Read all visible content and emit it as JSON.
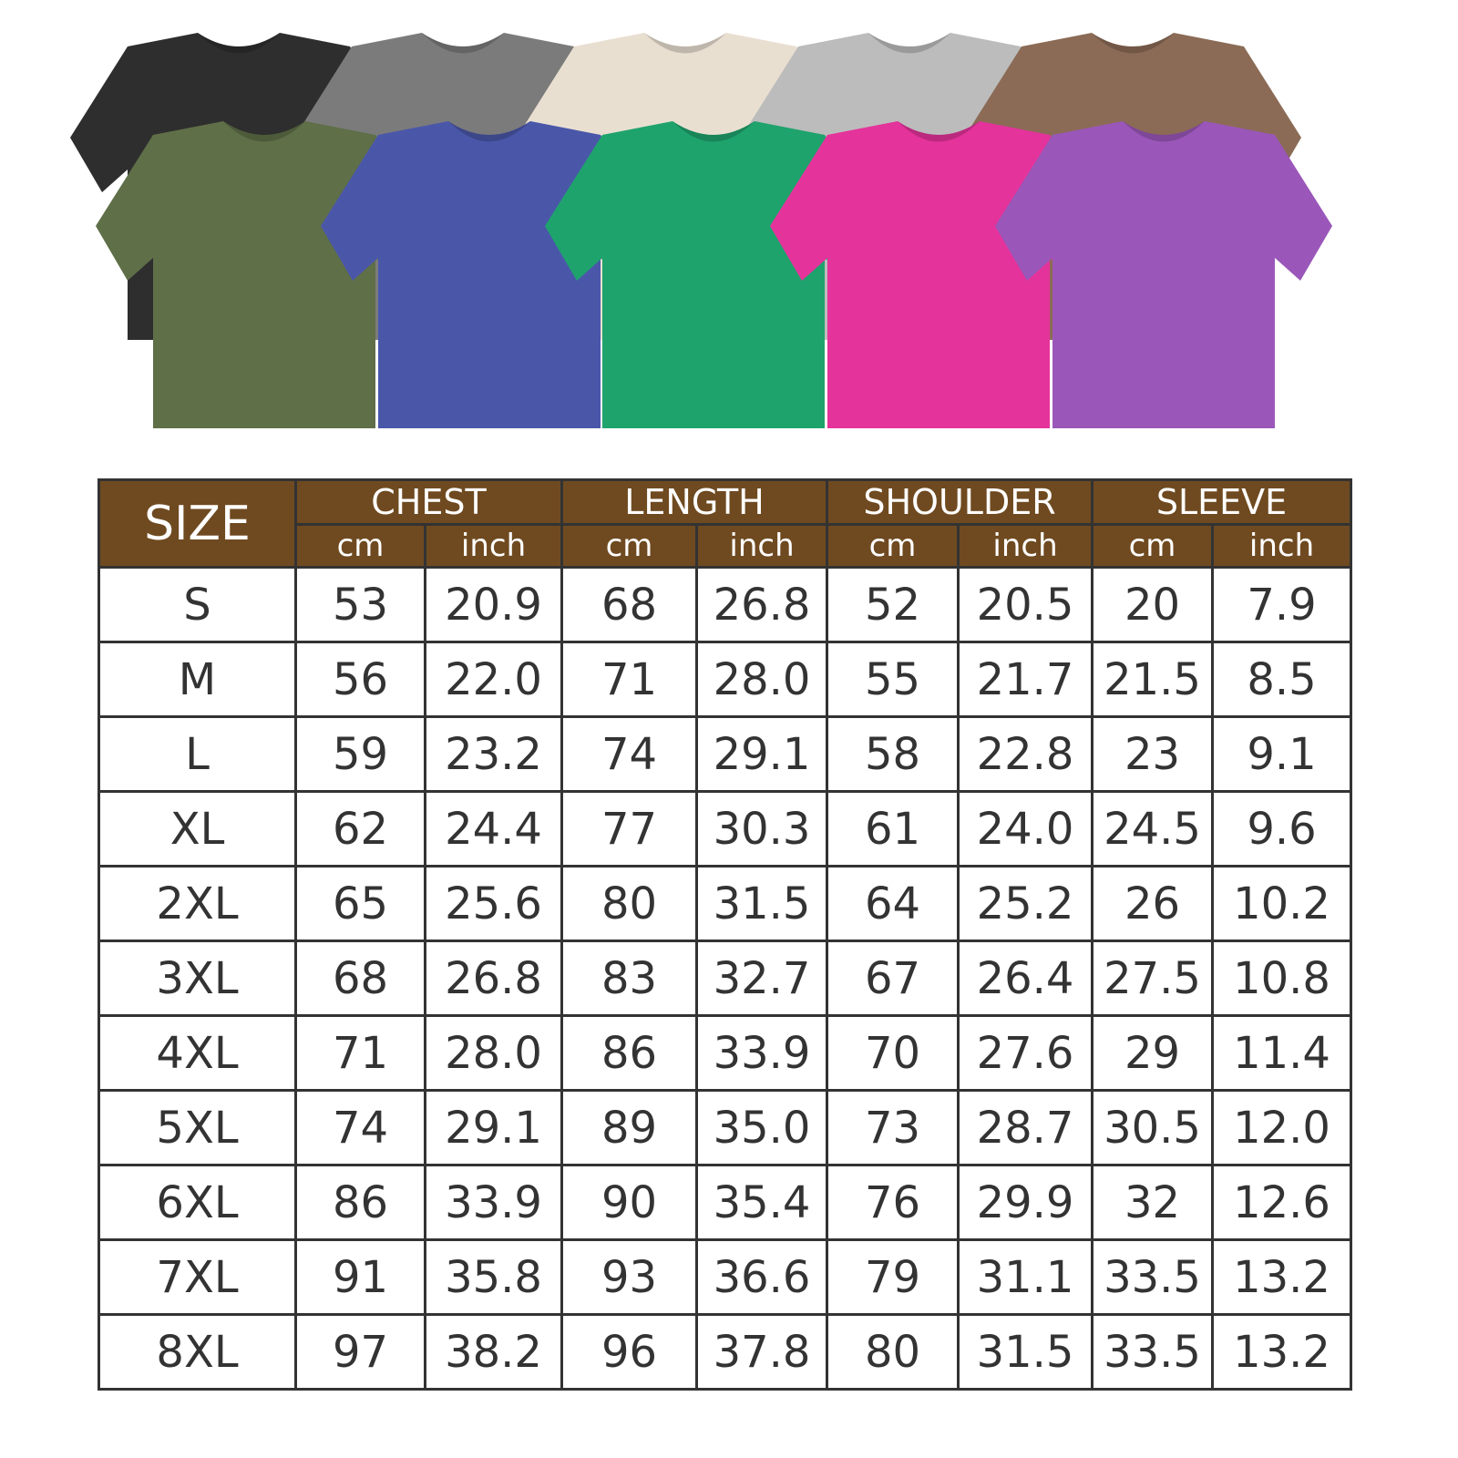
{
  "shirts": {
    "back_row": [
      "#2e2e2e",
      "#7b7b7b",
      "#e9dfd1",
      "#bcbcbc",
      "#8b6b56"
    ],
    "front_row": [
      "#5f6f48",
      "#4a57a9",
      "#1fa36d",
      "#e4339b",
      "#9a57b9"
    ]
  },
  "colors": {
    "header_bg": "#6f4a20",
    "grid": "#333333"
  },
  "table": {
    "size_header": "SIZE",
    "groups": [
      "CHEST",
      "LENGTH",
      "SHOULDER",
      "SLEEVE"
    ],
    "units": [
      "cm",
      "inch"
    ],
    "rows": [
      [
        "S",
        "53",
        "20.9",
        "68",
        "26.8",
        "52",
        "20.5",
        "20",
        "7.9"
      ],
      [
        "M",
        "56",
        "22.0",
        "71",
        "28.0",
        "55",
        "21.7",
        "21.5",
        "8.5"
      ],
      [
        "L",
        "59",
        "23.2",
        "74",
        "29.1",
        "58",
        "22.8",
        "23",
        "9.1"
      ],
      [
        "XL",
        "62",
        "24.4",
        "77",
        "30.3",
        "61",
        "24.0",
        "24.5",
        "9.6"
      ],
      [
        "2XL",
        "65",
        "25.6",
        "80",
        "31.5",
        "64",
        "25.2",
        "26",
        "10.2"
      ],
      [
        "3XL",
        "68",
        "26.8",
        "83",
        "32.7",
        "67",
        "26.4",
        "27.5",
        "10.8"
      ],
      [
        "4XL",
        "71",
        "28.0",
        "86",
        "33.9",
        "70",
        "27.6",
        "29",
        "11.4"
      ],
      [
        "5XL",
        "74",
        "29.1",
        "89",
        "35.0",
        "73",
        "28.7",
        "30.5",
        "12.0"
      ],
      [
        "6XL",
        "86",
        "33.9",
        "90",
        "35.4",
        "76",
        "29.9",
        "32",
        "12.6"
      ],
      [
        "7XL",
        "91",
        "35.8",
        "93",
        "36.6",
        "79",
        "31.1",
        "33.5",
        "13.2"
      ],
      [
        "8XL",
        "97",
        "38.2",
        "96",
        "37.8",
        "80",
        "31.5",
        "33.5",
        "13.2"
      ]
    ]
  }
}
